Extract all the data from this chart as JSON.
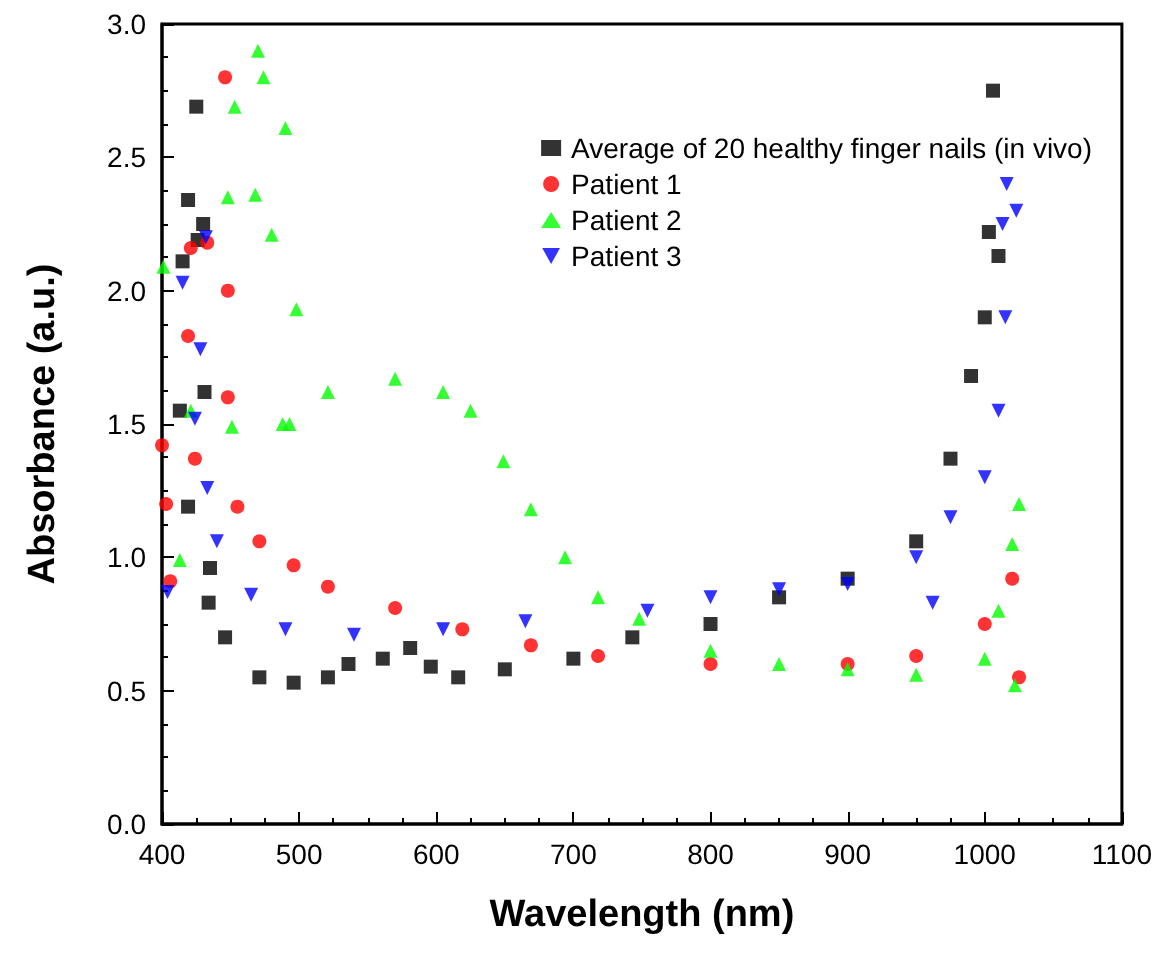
{
  "chart_data": {
    "type": "scatter",
    "xlabel": "Wavelength (nm)",
    "ylabel": "Absorbance (a.u.)",
    "xlim": [
      400,
      1100
    ],
    "xticks": [
      400,
      500,
      600,
      700,
      800,
      900,
      1000,
      1100
    ],
    "ylim": [
      0,
      3
    ],
    "yticks": [
      {
        "value": 0,
        "label": "0.0"
      },
      0.5,
      {
        "value": 1,
        "label": "1.0"
      },
      1.5,
      {
        "value": 2,
        "label": "2.0"
      },
      2.5,
      {
        "value": 3,
        "label": "3.0"
      }
    ],
    "grid": false,
    "legend": "top right",
    "series": [
      {
        "name": "Average of 20 healthy finger nails (in vivo)",
        "color": "#000000",
        "marker": "square",
        "x": [
          413,
          415,
          419,
          419,
          425,
          426,
          430,
          431,
          434,
          435,
          446,
          471,
          496,
          521,
          536,
          561,
          581,
          596,
          616,
          650,
          700,
          743,
          800,
          850,
          900,
          950,
          975,
          990,
          1000,
          1003,
          1006,
          1010
        ],
        "values": [
          1.55,
          2.11,
          2.34,
          1.19,
          2.69,
          2.19,
          2.25,
          1.62,
          0.83,
          0.96,
          0.7,
          0.55,
          0.53,
          0.55,
          0.6,
          0.62,
          0.66,
          0.59,
          0.55,
          0.58,
          0.62,
          0.7,
          0.75,
          0.85,
          0.92,
          1.06,
          1.37,
          1.68,
          1.9,
          2.22,
          2.75,
          2.13
        ]
      },
      {
        "name": "Patient 1",
        "color": "#ff0000",
        "marker": "circle",
        "x": [
          400,
          403,
          406,
          419,
          421,
          424,
          433,
          446,
          448,
          448,
          455,
          471,
          496,
          521,
          570,
          619,
          669,
          718,
          800,
          900,
          950,
          1000,
          1020,
          1025
        ],
        "values": [
          1.42,
          1.2,
          0.91,
          1.83,
          2.16,
          1.37,
          2.18,
          2.8,
          2.0,
          1.6,
          1.19,
          1.06,
          0.97,
          0.89,
          0.81,
          0.73,
          0.67,
          0.63,
          0.6,
          0.6,
          0.63,
          0.75,
          0.92,
          0.55
        ]
      },
      {
        "name": "Patient 2",
        "color": "#00ff00",
        "marker": "triangle",
        "x": [
          401,
          413,
          421,
          448,
          451,
          453,
          468,
          470,
          474,
          480,
          488,
          490,
          493,
          498,
          521,
          570,
          605,
          625,
          649,
          669,
          694,
          718,
          748,
          800,
          850,
          900,
          950,
          1000,
          1010,
          1020,
          1022,
          1025
        ],
        "values": [
          2.09,
          0.99,
          1.55,
          2.35,
          1.49,
          2.69,
          2.36,
          2.9,
          2.8,
          2.21,
          1.5,
          2.61,
          1.5,
          1.93,
          1.62,
          1.67,
          1.62,
          1.55,
          1.36,
          1.18,
          1.0,
          0.85,
          0.77,
          0.65,
          0.6,
          0.58,
          0.56,
          0.62,
          0.8,
          1.05,
          0.52,
          1.2
        ]
      },
      {
        "name": "Patient 3",
        "color": "#0000ff",
        "marker": "triangle-down",
        "x": [
          404,
          415,
          424,
          428,
          432,
          433,
          440,
          465,
          490,
          540,
          605,
          665,
          754,
          800,
          850,
          900,
          950,
          962,
          975,
          1000,
          1010,
          1013,
          1015,
          1016,
          1023
        ],
        "values": [
          0.87,
          2.03,
          1.52,
          1.78,
          2.2,
          1.26,
          1.06,
          0.86,
          0.73,
          0.71,
          0.73,
          0.76,
          0.8,
          0.85,
          0.88,
          0.9,
          1.0,
          0.83,
          1.15,
          1.3,
          1.55,
          2.25,
          1.9,
          2.4,
          2.3
        ]
      }
    ]
  }
}
